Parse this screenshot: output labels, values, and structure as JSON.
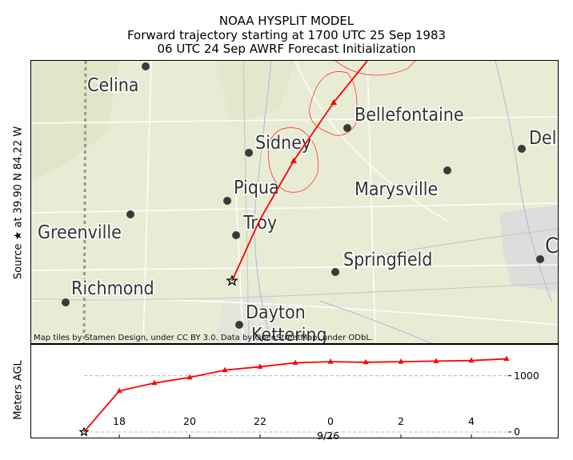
{
  "title": {
    "line1": "NOAA HYSPLIT MODEL",
    "line2": "Forward trajectory starting at 1700 UTC 25 Sep 1983",
    "line3": "06 UTC 24 Sep  AWRF  Forecast Initialization"
  },
  "map_ylabel": "Source ★ at   39.90 N   84.22 W",
  "altitude_ylabel": "Meters AGL",
  "attribution": "Map tiles by Stamen Design, under CC BY 3.0. Data by OpenStreetMap, under ODbL.",
  "cities": [
    {
      "name": "Celina"
    },
    {
      "name": "Bellefontaine"
    },
    {
      "name": "Sidney"
    },
    {
      "name": "Dela"
    },
    {
      "name": "Marysville"
    },
    {
      "name": "Piqua"
    },
    {
      "name": "Greenville"
    },
    {
      "name": "Troy"
    },
    {
      "name": "C"
    },
    {
      "name": "Springfield"
    },
    {
      "name": "Richmond"
    },
    {
      "name": "Dayton"
    },
    {
      "name": "Kettering"
    }
  ],
  "colors": {
    "trajectory": "#ff0000",
    "map_background": "#e9ecd5",
    "city_dot": "#3a3a3a",
    "gridline": "#aaaaaa"
  },
  "source": {
    "lat": 39.9,
    "lon": -84.22,
    "marker": "star"
  },
  "chart_data": {
    "type": "line",
    "xlabel": "9/26",
    "x_ticks": [
      "18",
      "20",
      "22",
      "0",
      "2",
      "4"
    ],
    "y_ticks": [
      "0",
      "1000"
    ],
    "ylim": [
      -100,
      1550
    ],
    "grid": "horizontal dashed at 0 and 1000",
    "series": [
      {
        "x_hours_utc": [
          "17:00",
          "18:00",
          "19:00",
          "20:00",
          "21:00",
          "22:00",
          "23:00",
          "00:00",
          "01:00",
          "02:00",
          "03:00",
          "04:00",
          "05:00"
        ],
        "values": [
          0,
          730,
          870,
          970,
          1100,
          1160,
          1230,
          1250,
          1240,
          1250,
          1260,
          1270,
          1300
        ],
        "marker": "triangle"
      }
    ]
  }
}
